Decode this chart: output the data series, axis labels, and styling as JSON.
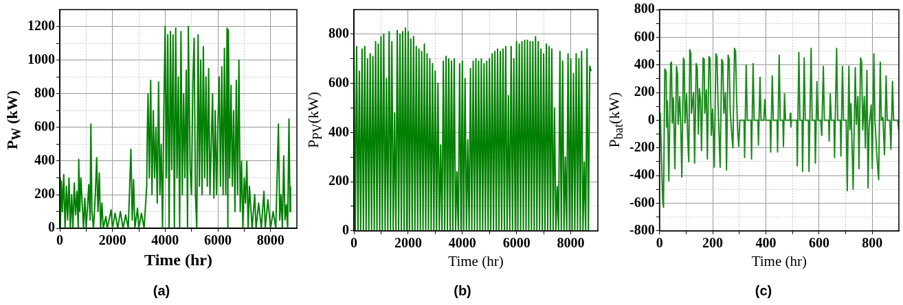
{
  "chart_data": [
    {
      "type": "line",
      "title": "(a)",
      "xlabel": "Time (hr)",
      "ylabel": "P$_{W}$ (kW)",
      "grid": true,
      "xlim": [
        0,
        9000
      ],
      "ylim": [
        0,
        1300
      ],
      "xticks": [
        0,
        {
          "value": 1000,
          "label": null
        },
        2000,
        {
          "value": 3000,
          "label": null
        },
        4000,
        {
          "value": 5000,
          "label": null
        },
        6000,
        {
          "value": 7000,
          "label": null
        },
        8000
      ],
      "yticks": [
        0,
        {
          "value": 100,
          "label": null
        },
        200,
        {
          "value": 300,
          "label": null
        },
        400,
        {
          "value": 500,
          "label": null
        },
        600,
        {
          "value": 700,
          "label": null
        },
        800,
        {
          "value": 900,
          "label": null
        },
        1000,
        {
          "value": 1100,
          "label": null
        },
        1200
      ],
      "series": [
        {
          "color": "#008000",
          "x": [
            0,
            20,
            60,
            100,
            150,
            200,
            250,
            300,
            350,
            400,
            450,
            500,
            550,
            600,
            650,
            700,
            720,
            760,
            800,
            850,
            900,
            950,
            1000,
            1050,
            1100,
            1150,
            1180,
            1220,
            1280,
            1350,
            1400,
            1450,
            1500,
            1550,
            1600,
            1650,
            1750,
            1800,
            1950,
            2000,
            2100,
            2200,
            2300,
            2400,
            2500,
            2600,
            2700,
            2750,
            2800,
            2850,
            2950,
            3000,
            3100,
            3200,
            3300,
            3320,
            3350,
            3400,
            3450,
            3500,
            3550,
            3600,
            3650,
            3700,
            3750,
            3800,
            3850,
            3900,
            3950,
            4000,
            4050,
            4100,
            4150,
            4200,
            4250,
            4300,
            4350,
            4400,
            4450,
            4500,
            4550,
            4600,
            4650,
            4700,
            4750,
            4800,
            4850,
            4880,
            4950,
            5000,
            5050,
            5100,
            5150,
            5200,
            5250,
            5300,
            5350,
            5400,
            5450,
            5500,
            5550,
            5600,
            5650,
            5700,
            5800,
            5850,
            5900,
            5950,
            6000,
            6050,
            6100,
            6150,
            6200,
            6250,
            6300,
            6350,
            6380,
            6400,
            6450,
            6500,
            6550,
            6600,
            6650,
            6700,
            6750,
            6800,
            6850,
            6900,
            6950,
            7000,
            7050,
            7100,
            7150,
            7200,
            7300,
            7400,
            7450,
            7550,
            7650,
            7750,
            7800,
            7900,
            8000,
            8100,
            8200,
            8300,
            8350,
            8400,
            8450,
            8500,
            8550,
            8600,
            8650,
            8700,
            8740,
            8760
          ],
          "values": [
            300,
            0,
            280,
            100,
            320,
            0,
            250,
            50,
            300,
            0,
            200,
            0,
            270,
            80,
            220,
            0,
            410,
            100,
            300,
            150,
            0,
            180,
            0,
            120,
            260,
            50,
            620,
            100,
            0,
            200,
            420,
            100,
            330,
            0,
            150,
            0,
            70,
            0,
            110,
            0,
            90,
            0,
            100,
            0,
            80,
            0,
            470,
            50,
            290,
            0,
            120,
            0,
            90,
            0,
            250,
            550,
            800,
            300,
            880,
            200,
            700,
            300,
            600,
            150,
            870,
            200,
            500,
            0,
            700,
            1200,
            300,
            1150,
            0,
            1170,
            350,
            1150,
            0,
            1190,
            300,
            900,
            0,
            1170,
            200,
            800,
            300,
            940,
            0,
            1200,
            350,
            200,
            860,
            1130,
            200,
            0,
            1150,
            250,
            1000,
            200,
            1080,
            300,
            900,
            250,
            950,
            200,
            800,
            180,
            700,
            200,
            600,
            900,
            250,
            960,
            200,
            1070,
            200,
            1190,
            0,
            1180,
            300,
            850,
            250,
            700,
            100,
            880,
            200,
            1000,
            100,
            400,
            0,
            300,
            150,
            400,
            0,
            250,
            0,
            200,
            0,
            150,
            0,
            220,
            0,
            170,
            0,
            100,
            0,
            620,
            50,
            200,
            0,
            430,
            50,
            140,
            0,
            650,
            100,
            250
          ]
        }
      ]
    },
    {
      "type": "line",
      "title": "(b)",
      "xlabel": "Time (hr)",
      "ylabel": "P$_{PV}$(kW)",
      "grid": true,
      "xlim": [
        0,
        9000
      ],
      "ylim": [
        0,
        900
      ],
      "xticks": [
        0,
        {
          "value": 1000,
          "label": null
        },
        2000,
        {
          "value": 3000,
          "label": null
        },
        4000,
        {
          "value": 5000,
          "label": null
        },
        6000,
        {
          "value": 7000,
          "label": null
        },
        8000
      ],
      "yticks": [
        0,
        {
          "value": 100,
          "label": null
        },
        200,
        {
          "value": 300,
          "label": null
        },
        400,
        {
          "value": 500,
          "label": null
        },
        600,
        {
          "value": 700,
          "label": null
        },
        800
      ],
      "series": [
        {
          "color": "#008000",
          "x": [
            0,
            50,
            100,
            150,
            200,
            250,
            300,
            350,
            400,
            450,
            500,
            550,
            600,
            650,
            700,
            750,
            800,
            850,
            900,
            950,
            1000,
            1050,
            1100,
            1150,
            1200,
            1250,
            1300,
            1350,
            1400,
            1450,
            1500,
            1550,
            1600,
            1650,
            1700,
            1750,
            1800,
            1850,
            1900,
            1950,
            2000,
            2050,
            2100,
            2150,
            2200,
            2250,
            2300,
            2350,
            2400,
            2450,
            2500,
            2550,
            2600,
            2650,
            2700,
            2750,
            2800,
            2850,
            2900,
            2950,
            3000,
            3050,
            3100,
            3150,
            3200,
            3250,
            3300,
            3350,
            3400,
            3450,
            3500,
            3550,
            3600,
            3650,
            3700,
            3750,
            3800,
            3850,
            3900,
            3950,
            4000,
            4050,
            4100,
            4150,
            4200,
            4250,
            4300,
            4350,
            4400,
            4450,
            4500,
            4550,
            4600,
            4650,
            4700,
            4750,
            4800,
            4850,
            4900,
            4950,
            5000,
            5050,
            5100,
            5150,
            5200,
            5250,
            5300,
            5350,
            5400,
            5450,
            5500,
            5550,
            5600,
            5650,
            5700,
            5750,
            5800,
            5850,
            5900,
            5950,
            6000,
            6050,
            6100,
            6150,
            6200,
            6250,
            6300,
            6350,
            6400,
            6450,
            6500,
            6550,
            6600,
            6650,
            6700,
            6750,
            6800,
            6850,
            6900,
            6950,
            7000,
            7050,
            7100,
            7150,
            7200,
            7250,
            7300,
            7350,
            7400,
            7450,
            7500,
            7550,
            7600,
            7650,
            7700,
            7750,
            7800,
            7850,
            7900,
            7950,
            8000,
            8050,
            8100,
            8150,
            8200,
            8250,
            8300,
            8350,
            8400,
            8450,
            8500,
            8550,
            8600,
            8650,
            8700,
            8750
          ],
          "values": [
            740,
            0,
            750,
            0,
            650,
            0,
            740,
            0,
            750,
            0,
            700,
            0,
            720,
            0,
            710,
            0,
            770,
            0,
            760,
            0,
            790,
            0,
            800,
            0,
            620,
            0,
            810,
            0,
            770,
            0,
            480,
            0,
            815,
            0,
            800,
            0,
            810,
            0,
            825,
            0,
            810,
            0,
            780,
            0,
            790,
            0,
            750,
            0,
            740,
            0,
            730,
            0,
            760,
            0,
            720,
            0,
            700,
            0,
            680,
            0,
            650,
            0,
            600,
            0,
            350,
            0,
            690,
            0,
            710,
            0,
            700,
            0,
            690,
            0,
            700,
            0,
            240,
            0,
            680,
            0,
            690,
            0,
            620,
            0,
            370,
            0,
            660,
            0,
            690,
            0,
            700,
            0,
            690,
            0,
            700,
            0,
            680,
            0,
            690,
            0,
            700,
            0,
            720,
            0,
            730,
            0,
            740,
            0,
            730,
            0,
            740,
            0,
            750,
            0,
            550,
            0,
            750,
            0,
            700,
            0,
            770,
            0,
            760,
            0,
            770,
            0,
            775,
            0,
            775,
            0,
            770,
            0,
            770,
            0,
            790,
            0,
            770,
            0,
            740,
            0,
            720,
            0,
            760,
            0,
            750,
            0,
            740,
            0,
            500,
            0,
            180,
            0,
            730,
            0,
            690,
            0,
            300,
            0,
            720,
            0,
            700,
            0,
            640,
            0,
            720,
            0,
            700,
            0,
            730,
            0,
            280,
            0,
            740,
            0,
            670,
            650
          ]
        }
      ]
    },
    {
      "type": "line",
      "title": "(c)",
      "xlabel": "Time (hr)",
      "ylabel": "P$_{bat}$(kW)",
      "grid": true,
      "xlim": [
        0,
        900
      ],
      "ylim": [
        -800,
        800
      ],
      "xticks": [
        0,
        {
          "value": 100,
          "label": null
        },
        200,
        {
          "value": 300,
          "label": null
        },
        400,
        {
          "value": 500,
          "label": null
        },
        600,
        {
          "value": 700,
          "label": null
        },
        800
      ],
      "yticks": [
        -800,
        {
          "value": -700,
          "label": null
        },
        -600,
        {
          "value": -500,
          "label": null
        },
        -400,
        {
          "value": -300,
          "label": null
        },
        -200,
        {
          "value": -100,
          "label": null
        },
        0,
        {
          "value": 100,
          "label": null
        },
        200,
        {
          "value": 300,
          "label": null
        },
        400,
        {
          "value": 500,
          "label": null
        },
        600,
        {
          "value": 700,
          "label": null
        },
        800
      ],
      "series": [
        {
          "color": "#1a8a1a",
          "x": [
            0,
            3,
            8,
            12,
            15,
            20,
            25,
            27,
            30,
            35,
            42,
            45,
            48,
            52,
            56,
            58,
            64,
            68,
            70,
            76,
            80,
            84,
            90,
            93,
            96,
            102,
            106,
            110,
            114,
            118,
            120,
            128,
            132,
            138,
            142,
            146,
            150,
            154,
            158,
            164,
            168,
            170,
            176,
            180,
            186,
            190,
            195,
            200,
            206,
            212,
            216,
            220,
            226,
            228,
            234,
            238,
            242,
            248,
            252,
            258,
            262,
            266,
            272,
            276,
            282,
            286,
            290,
            294,
            298,
            302,
            318,
            320,
            326,
            330,
            344,
            346,
            352,
            356,
            370,
            372,
            378,
            382,
            392,
            396,
            400,
            416,
            418,
            424,
            428,
            442,
            444,
            450,
            454,
            464,
            466,
            470,
            474,
            490,
            492,
            494,
            496,
            516,
            518,
            524,
            528,
            536,
            538,
            544,
            548,
            560,
            562,
            570,
            574,
            584,
            586,
            592,
            596,
            606,
            610,
            616,
            620,
            636,
            638,
            642,
            646,
            656,
            658,
            666,
            670,
            680,
            682,
            688,
            692,
            702,
            706,
            712,
            716,
            720,
            728,
            736,
            740,
            746,
            750,
            756,
            760,
            764,
            770,
            774,
            780,
            784,
            788,
            796,
            800,
            806,
            810,
            818,
            824,
            830,
            834,
            840,
            846,
            852,
            856,
            866,
            870,
            876,
            880,
            896,
            900
          ],
          "values": [
            0,
            50,
            -300,
            -580,
            -630,
            370,
            350,
            -50,
            140,
            -440,
            410,
            420,
            -20,
            160,
            -180,
            -350,
            390,
            330,
            -30,
            170,
            -50,
            -410,
            450,
            430,
            -20,
            190,
            -120,
            -300,
            510,
            480,
            50,
            200,
            -310,
            410,
            380,
            -100,
            230,
            150,
            -220,
            450,
            440,
            50,
            220,
            -280,
            460,
            450,
            -110,
            80,
            -340,
            480,
            460,
            130,
            -230,
            -340,
            440,
            420,
            50,
            200,
            -360,
            470,
            440,
            60,
            -110,
            -200,
            520,
            500,
            150,
            -80,
            -190,
            0,
            0,
            -270,
            400,
            0,
            0,
            -280,
            410,
            0,
            0,
            -180,
            310,
            0,
            0,
            150,
            0,
            0,
            -230,
            320,
            0,
            0,
            -230,
            470,
            0,
            0,
            -190,
            190,
            0,
            0,
            50,
            -50,
            0,
            0,
            -330,
            490,
            0,
            0,
            -370,
            450,
            0,
            0,
            -370,
            520,
            0,
            0,
            -310,
            280,
            0,
            0,
            -110,
            390,
            0,
            0,
            -150,
            190,
            0,
            0,
            -270,
            520,
            0,
            0,
            -260,
            390,
            0,
            0,
            -510,
            390,
            -70,
            120,
            -500,
            380,
            -30,
            170,
            -350,
            450,
            420,
            -70,
            170,
            -200,
            360,
            -490,
            -50,
            110,
            -350,
            480,
            0,
            -280,
            -430,
            420,
            0,
            20,
            -250,
            320,
            0,
            0,
            -210,
            280,
            0,
            0,
            -80
          ]
        }
      ]
    }
  ]
}
